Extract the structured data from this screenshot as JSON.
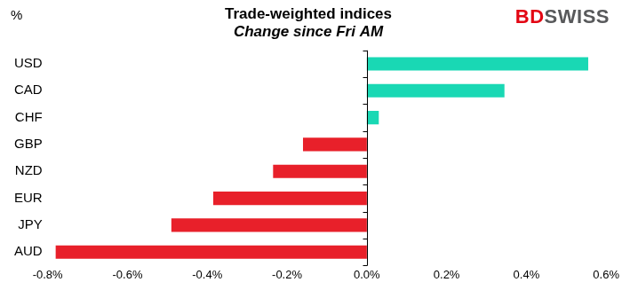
{
  "chart_data": {
    "type": "bar",
    "orientation": "horizontal",
    "title": "Trade-weighted indices",
    "subtitle": "Change since Fri AM",
    "xlabel": "%",
    "annotations": [
      "BDSWISS"
    ],
    "categories": [
      "USD",
      "CAD",
      "CHF",
      "GBP",
      "NZD",
      "EUR",
      "JPY",
      "AUD"
    ],
    "values": [
      0.555,
      0.345,
      0.03,
      -0.16,
      -0.235,
      -0.385,
      -0.49,
      -0.78
    ],
    "colors": [
      "#19d8b4",
      "#19d8b4",
      "#19d8b4",
      "#e8202a",
      "#e8202a",
      "#e8202a",
      "#e8202a",
      "#e8202a"
    ],
    "xlim": [
      -0.8,
      0.6
    ],
    "xticks": [
      {
        "value": -0.8,
        "label": "-0.8%"
      },
      {
        "value": -0.6,
        "label": "-0.6%"
      },
      {
        "value": -0.4,
        "label": "-0.4%"
      },
      {
        "value": -0.2,
        "label": "-0.2%"
      },
      {
        "value": 0,
        "label": "0.0%"
      },
      {
        "value": 0.2,
        "label": "0.2%"
      },
      {
        "value": 0.4,
        "label": "0.4%"
      },
      {
        "value": 0.6,
        "label": "0.6%"
      }
    ],
    "grid": false
  }
}
